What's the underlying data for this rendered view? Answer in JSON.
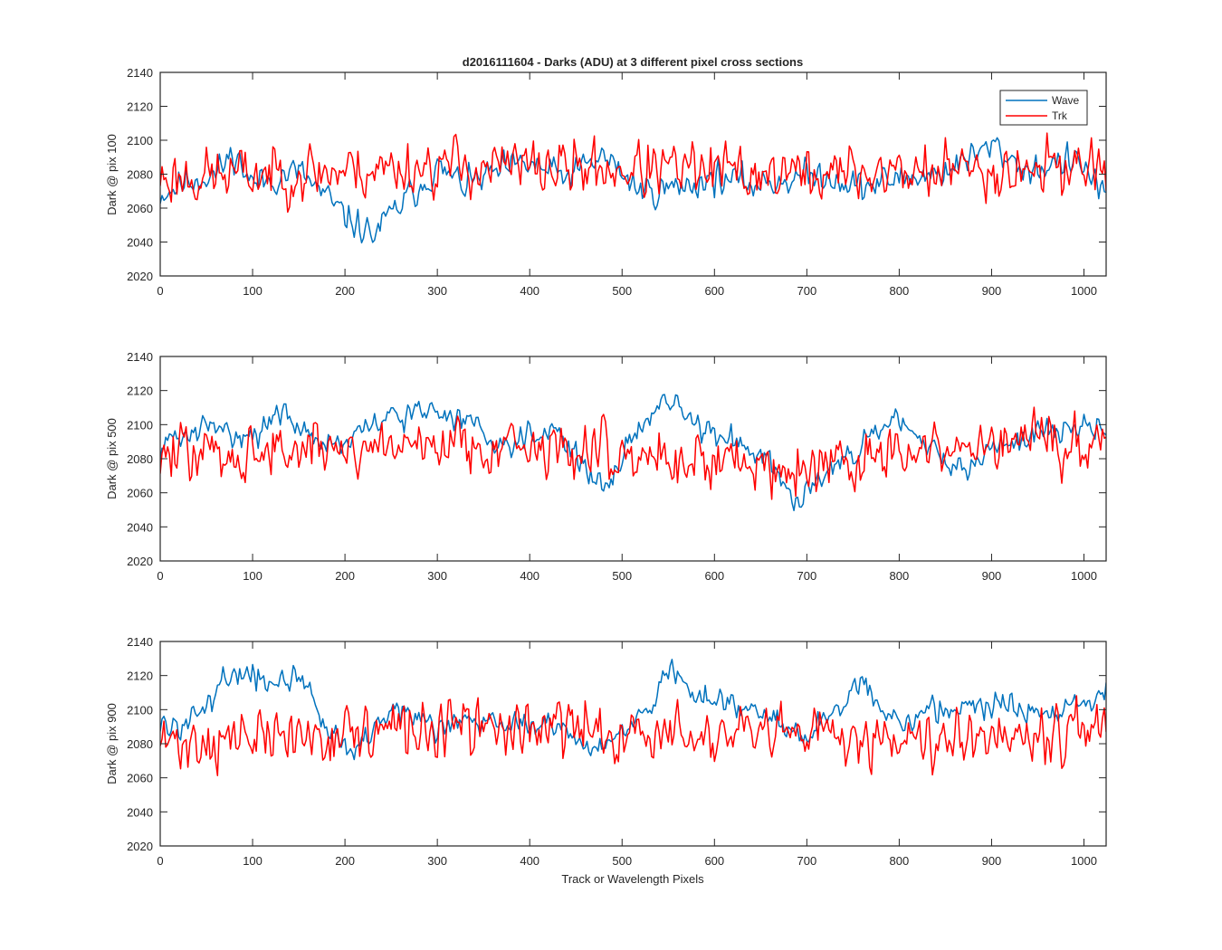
{
  "colors": {
    "wave": "#0072BD",
    "trk": "#FF0000",
    "axes": "#262626",
    "background": "#FFFFFF"
  },
  "chart_data": [
    {
      "type": "line",
      "title": "d2016111604 - Darks (ADU) at 3 different pixel cross sections",
      "xlabel": "",
      "ylabel": "Dark @ pix 100",
      "xlim": [
        0,
        1024
      ],
      "ylim": [
        2020,
        2140
      ],
      "xticks": [
        0,
        100,
        200,
        300,
        400,
        500,
        600,
        700,
        800,
        900,
        1000
      ],
      "yticks": [
        2020,
        2040,
        2060,
        2080,
        2100,
        2120,
        2140
      ],
      "grid": false,
      "legend": {
        "position": "top-right",
        "entries": [
          "Wave",
          "Trk"
        ]
      },
      "series": [
        {
          "name": "Wave",
          "color": "#0072BD",
          "trend": {
            "x": [
              0,
              30,
              60,
              80,
              100,
              150,
              180,
              200,
              230,
              260,
              300,
              330,
              370,
              400,
              440,
              480,
              520,
              560,
              600,
              640,
              680,
              720,
              760,
              800,
              840,
              880,
              900,
              940,
              980,
              1000,
              1024
            ],
            "y": [
              2068,
              2076,
              2080,
              2093,
              2074,
              2082,
              2066,
              2055,
              2044,
              2062,
              2083,
              2074,
              2082,
              2086,
              2078,
              2091,
              2070,
              2072,
              2078,
              2074,
              2077,
              2080,
              2072,
              2078,
              2080,
              2090,
              2097,
              2082,
              2088,
              2084,
              2068
            ]
          },
          "noise": 6,
          "seed": 11
        },
        {
          "name": "Trk",
          "color": "#FF0000",
          "trend": {
            "x": [
              0,
              200,
              300,
              500,
              700,
              900,
              1024
            ],
            "y": [
              2078,
              2082,
              2085,
              2083,
              2080,
              2083,
              2086
            ]
          },
          "noise": 11,
          "seed": 23
        }
      ]
    },
    {
      "type": "line",
      "title": "",
      "xlabel": "",
      "ylabel": "Dark @ pix 500",
      "xlim": [
        0,
        1024
      ],
      "ylim": [
        2020,
        2140
      ],
      "xticks": [
        0,
        100,
        200,
        300,
        400,
        500,
        600,
        700,
        800,
        900,
        1000
      ],
      "yticks": [
        2020,
        2040,
        2060,
        2080,
        2100,
        2120,
        2140
      ],
      "grid": false,
      "series": [
        {
          "name": "Wave",
          "color": "#0072BD",
          "trend": {
            "x": [
              0,
              50,
              100,
              130,
              170,
              200,
              240,
              290,
              330,
              370,
              400,
              430,
              460,
              480,
              500,
              520,
              550,
              580,
              620,
              660,
              690,
              720,
              760,
              790,
              830,
              870,
              900,
              950,
              1000,
              1024
            ],
            "y": [
              2088,
              2098,
              2094,
              2106,
              2092,
              2088,
              2103,
              2108,
              2104,
              2088,
              2095,
              2098,
              2074,
              2060,
              2082,
              2100,
              2114,
              2100,
              2090,
              2082,
              2052,
              2076,
              2086,
              2102,
              2088,
              2072,
              2086,
              2095,
              2100,
              2097
            ]
          },
          "noise": 5,
          "seed": 31
        },
        {
          "name": "Trk",
          "color": "#FF0000",
          "trend": {
            "x": [
              0,
              150,
              300,
              500,
              700,
              900,
              1024
            ],
            "y": [
              2082,
              2085,
              2090,
              2083,
              2075,
              2088,
              2090
            ]
          },
          "noise": 11,
          "seed": 47
        }
      ]
    },
    {
      "type": "line",
      "title": "",
      "xlabel": "Track or Wavelength Pixels",
      "ylabel": "Dark @ pix 900",
      "xlim": [
        0,
        1024
      ],
      "ylim": [
        2020,
        2140
      ],
      "xticks": [
        0,
        100,
        200,
        300,
        400,
        500,
        600,
        700,
        800,
        900,
        1000
      ],
      "yticks": [
        2020,
        2040,
        2060,
        2080,
        2100,
        2120,
        2140
      ],
      "grid": false,
      "series": [
        {
          "name": "Wave",
          "color": "#0072BD",
          "trend": {
            "x": [
              0,
              30,
              60,
              80,
              110,
              150,
              180,
              210,
              250,
              300,
              350,
              400,
              440,
              470,
              500,
              530,
              555,
              580,
              620,
              660,
              700,
              730,
              760,
              790,
              850,
              900,
              950,
              1000,
              1024
            ],
            "y": [
              2090,
              2092,
              2110,
              2125,
              2115,
              2122,
              2090,
              2075,
              2103,
              2090,
              2097,
              2090,
              2092,
              2070,
              2090,
              2104,
              2126,
              2106,
              2104,
              2096,
              2086,
              2098,
              2116,
              2094,
              2100,
              2104,
              2099,
              2104,
              2112
            ]
          },
          "noise": 5,
          "seed": 59
        },
        {
          "name": "Trk",
          "color": "#FF0000",
          "trend": {
            "x": [
              0,
              200,
              400,
              600,
              800,
              1024
            ],
            "y": [
              2080,
              2086,
              2090,
              2083,
              2085,
              2090
            ]
          },
          "noise": 11,
          "seed": 71
        }
      ]
    }
  ]
}
